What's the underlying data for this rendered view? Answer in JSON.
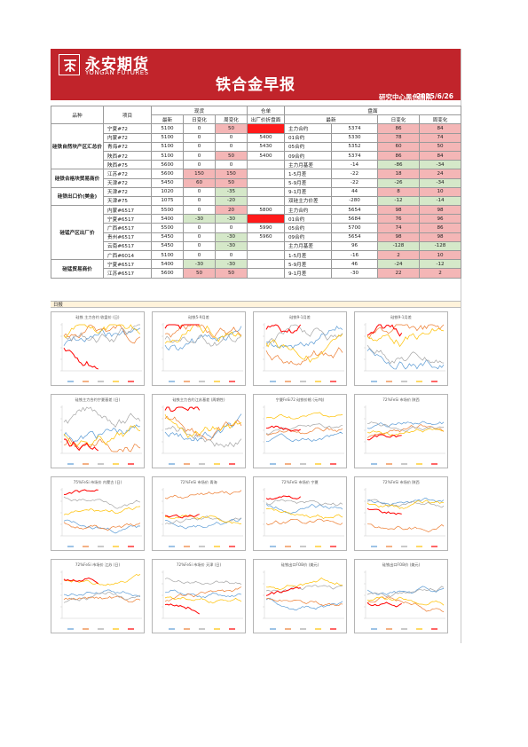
{
  "header": {
    "brand_cn": "永安期货",
    "brand_en": "YONGAN FUTURES",
    "title": "铁合金早报",
    "team": "研究中心黑色团队",
    "date": "2025/6/26"
  },
  "table": {
    "head1": {
      "variety": "品种",
      "item": "项目",
      "spot": "现货",
      "warehouse": "仓单",
      "futures": "盘面"
    },
    "head2": {
      "latest": "最新",
      "dchg": "日变化",
      "wchg": "周变化",
      "ex_factory": "出厂价折盘面",
      "f_latest": "最新",
      "f_dchg": "日变化",
      "f_wchg": "周变化"
    },
    "groups": [
      {
        "name": "硅铁自然块产区汇总价",
        "rows": [
          {
            "item": "宁夏#72",
            "latest": "5100",
            "dchg": "0",
            "wchg": "50",
            "wh": "5300",
            "contract": "主力合约",
            "f_latest": "5374",
            "f_dchg": "86",
            "f_wchg": "84"
          },
          {
            "item": "内蒙#72",
            "latest": "5100",
            "dchg": "0",
            "wchg": "0",
            "wh": "5400",
            "contract": "01合约",
            "f_latest": "5330",
            "f_dchg": "78",
            "f_wchg": "74"
          },
          {
            "item": "青海#72",
            "latest": "5100",
            "dchg": "0",
            "wchg": "0",
            "wh": "5430",
            "contract": "05合约",
            "f_latest": "5352",
            "f_dchg": "60",
            "f_wchg": "50"
          },
          {
            "item": "陕西#72",
            "latest": "5100",
            "dchg": "0",
            "wchg": "50",
            "wh": "5400",
            "contract": "09合约",
            "f_latest": "5374",
            "f_dchg": "86",
            "f_wchg": "84"
          },
          {
            "item": "陕西#75",
            "latest": "5600",
            "dchg": "0",
            "wchg": "0",
            "wh": "",
            "contract": "主力月基差",
            "f_latest": "-14",
            "f_dchg": "-86",
            "f_wchg": "-34"
          }
        ]
      },
      {
        "name": "硅铁合格块贸易商价",
        "rows": [
          {
            "item": "江苏#72",
            "latest": "5600",
            "dchg": "150",
            "wchg": "150",
            "wh": "",
            "contract": "1-5月差",
            "f_latest": "-22",
            "f_dchg": "18",
            "f_wchg": "24"
          },
          {
            "item": "天津#72",
            "latest": "5450",
            "dchg": "60",
            "wchg": "50",
            "wh": "",
            "contract": "5-9月差",
            "f_latest": "-22",
            "f_dchg": "-26",
            "f_wchg": "-34"
          }
        ]
      },
      {
        "name": "硅铁出口价(美金)",
        "rows": [
          {
            "item": "天津#72",
            "latest": "1020",
            "dchg": "0",
            "wchg": "-35",
            "wh": "",
            "contract": "9-1月差",
            "f_latest": "44",
            "f_dchg": "8",
            "f_wchg": "10"
          },
          {
            "item": "天津#75",
            "latest": "1075",
            "dchg": "0",
            "wchg": "-20",
            "wh": "",
            "contract": "双硅主力价差",
            "f_latest": "-280",
            "f_dchg": "-12",
            "f_wchg": "-14"
          }
        ]
      },
      {
        "name": "硅锰产区出厂价",
        "rows": [
          {
            "item": "内蒙#6517",
            "latest": "5500",
            "dchg": "0",
            "wchg": "20",
            "wh": "5800",
            "contract": "主力合约",
            "f_latest": "5654",
            "f_dchg": "98",
            "f_wchg": "98"
          },
          {
            "item": "宁夏#6517",
            "latest": "5400",
            "dchg": "-30",
            "wchg": "-30",
            "wh": "5890",
            "contract": "01合约",
            "f_latest": "5684",
            "f_dchg": "76",
            "f_wchg": "96"
          },
          {
            "item": "广西#6517",
            "latest": "5500",
            "dchg": "0",
            "wchg": "0",
            "wh": "5990",
            "contract": "05合约",
            "f_latest": "5700",
            "f_dchg": "74",
            "f_wchg": "86"
          },
          {
            "item": "贵州#6517",
            "latest": "5450",
            "dchg": "0",
            "wchg": "-30",
            "wh": "5960",
            "contract": "09合约",
            "f_latest": "5654",
            "f_dchg": "98",
            "f_wchg": "98"
          },
          {
            "item": "云南#6517",
            "latest": "5450",
            "dchg": "0",
            "wchg": "-30",
            "wh": "",
            "contract": "主力月基差",
            "f_latest": "96",
            "f_dchg": "-128",
            "f_wchg": "-128"
          },
          {
            "item": "广西#6014",
            "latest": "5100",
            "dchg": "0",
            "wchg": "0",
            "wh": "",
            "contract": "1-5月差",
            "f_latest": "-16",
            "f_dchg": "2",
            "f_wchg": "10"
          }
        ]
      },
      {
        "name": "硅锰贸易商价",
        "rows": [
          {
            "item": "宁夏#6517",
            "latest": "5400",
            "dchg": "-30",
            "wchg": "-30",
            "wh": "",
            "contract": "5-9月差",
            "f_latest": "46",
            "f_dchg": "-24",
            "f_wchg": "-12"
          },
          {
            "item": "江苏#6517",
            "latest": "5600",
            "dchg": "50",
            "wchg": "50",
            "wh": "",
            "contract": "9-1月差",
            "f_latest": "-30",
            "f_dchg": "22",
            "f_wchg": "2"
          }
        ]
      }
    ]
  },
  "notes_label": "日报",
  "charts": [
    {
      "title": "硅铁 主力合约 收盘价 (日)"
    },
    {
      "title": "硅铁5-9月差"
    },
    {
      "title": "硅铁9-1月差"
    },
    {
      "title": "硅铁9-1月差"
    },
    {
      "title": "硅铁主力合约宁夏基差 (日)"
    },
    {
      "title": "硅铁主力合约江苏基差 (周期性)"
    },
    {
      "title": "宁夏FeSi72 硅铁价格 (元/吨)"
    },
    {
      "title": "72%FeSi 市场价 陕西"
    },
    {
      "title": "75%FeSi 市场价 内蒙古 (日)"
    },
    {
      "title": "72%FeSi 市场价 青海"
    },
    {
      "title": "72%FeSi 市场价 宁夏"
    },
    {
      "title": "72%FeSi 市场价 陕西"
    },
    {
      "title": "72%FeSi 市场价 江苏 (日)"
    },
    {
      "title": "72%FeSi 市场价 天津 (日)"
    },
    {
      "title": "硅铁出口FOB价 (美元)"
    },
    {
      "title": "硅铁出口FOB价 (美元)"
    }
  ],
  "colors": {
    "accent": "#c1242b",
    "up": "#f4b6b6",
    "down": "#d5e8c9",
    "series": [
      "#5b9bd5",
      "#ed7d31",
      "#a5a5a5",
      "#ffc000",
      "#ff0000"
    ]
  }
}
